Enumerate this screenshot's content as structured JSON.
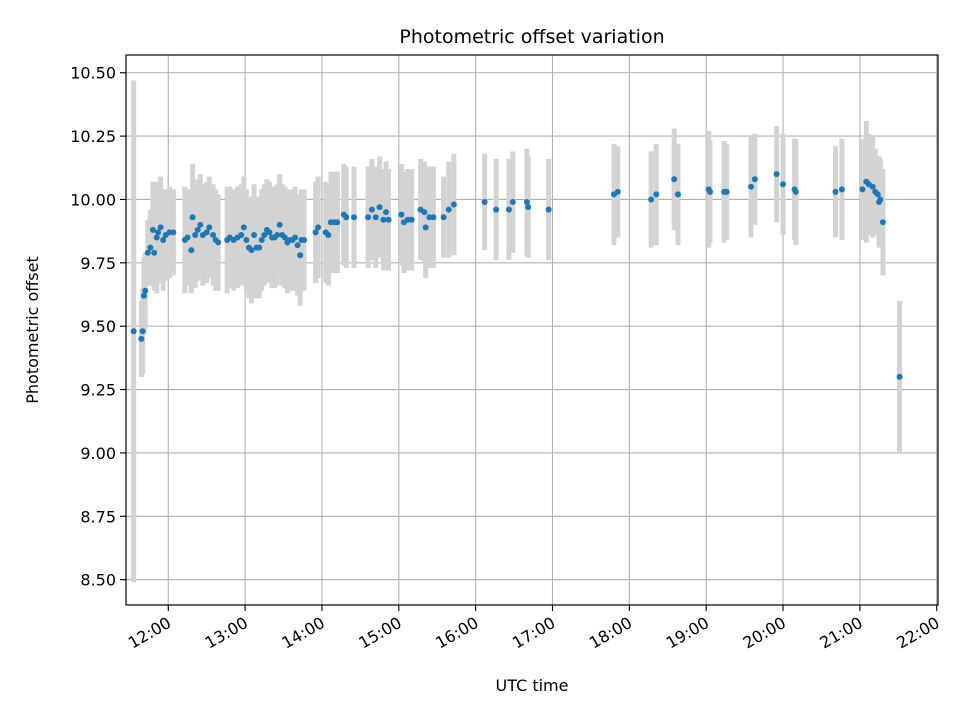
{
  "chart_data": {
    "type": "scatter",
    "title": "Photometric offset variation",
    "xlabel": "UTC time",
    "ylabel": "Photometric offset",
    "x_ticks": [
      "12:00",
      "13:00",
      "14:00",
      "15:00",
      "16:00",
      "17:00",
      "18:00",
      "19:00",
      "20:00",
      "21:00",
      "22:00"
    ],
    "y_ticks": [
      "8.50",
      "8.75",
      "9.00",
      "9.25",
      "9.50",
      "9.75",
      "10.00",
      "10.25",
      "10.50"
    ],
    "x_range": [
      "11:27",
      "22:01"
    ],
    "ylim": [
      8.4,
      10.57
    ],
    "grid": true,
    "colors": {
      "point": "#1f77b4",
      "errorbar": "#d3d3d3",
      "grid": "#b0b0b0"
    },
    "points": [
      {
        "x": "11:33",
        "y": 9.48,
        "err": 0.99
      },
      {
        "x": "11:39",
        "y": 9.45,
        "err": 0.15
      },
      {
        "x": "11:40",
        "y": 9.48,
        "err": 0.17
      },
      {
        "x": "11:41",
        "y": 9.62,
        "err": 0.15
      },
      {
        "x": "11:42",
        "y": 9.64,
        "err": 0.15
      },
      {
        "x": "11:44",
        "y": 9.79,
        "err": 0.13
      },
      {
        "x": "11:46",
        "y": 9.81,
        "err": 0.15
      },
      {
        "x": "11:48",
        "y": 9.88,
        "err": 0.19
      },
      {
        "x": "11:49",
        "y": 9.79,
        "err": 0.15
      },
      {
        "x": "11:51",
        "y": 9.85,
        "err": 0.22
      },
      {
        "x": "11:52",
        "y": 9.87,
        "err": 0.2
      },
      {
        "x": "11:54",
        "y": 9.89,
        "err": 0.2
      },
      {
        "x": "11:56",
        "y": 9.84,
        "err": 0.2
      },
      {
        "x": "11:58",
        "y": 9.86,
        "err": 0.18
      },
      {
        "x": "12:01",
        "y": 9.87,
        "err": 0.18
      },
      {
        "x": "12:04",
        "y": 9.87,
        "err": 0.17
      },
      {
        "x": "12:13",
        "y": 9.84,
        "err": 0.21
      },
      {
        "x": "12:15",
        "y": 9.85,
        "err": 0.19
      },
      {
        "x": "12:18",
        "y": 9.8,
        "err": 0.17
      },
      {
        "x": "12:19",
        "y": 9.93,
        "err": 0.21
      },
      {
        "x": "12:21",
        "y": 9.86,
        "err": 0.21
      },
      {
        "x": "12:23",
        "y": 9.88,
        "err": 0.2
      },
      {
        "x": "12:25",
        "y": 9.9,
        "err": 0.2
      },
      {
        "x": "12:27",
        "y": 9.86,
        "err": 0.2
      },
      {
        "x": "12:30",
        "y": 9.87,
        "err": 0.2
      },
      {
        "x": "12:32",
        "y": 9.89,
        "err": 0.2
      },
      {
        "x": "12:35",
        "y": 9.86,
        "err": 0.2
      },
      {
        "x": "12:37",
        "y": 9.84,
        "err": 0.2
      },
      {
        "x": "12:39",
        "y": 9.83,
        "err": 0.19
      },
      {
        "x": "12:46",
        "y": 9.84,
        "err": 0.21
      },
      {
        "x": "12:48",
        "y": 9.85,
        "err": 0.2
      },
      {
        "x": "12:51",
        "y": 9.84,
        "err": 0.2
      },
      {
        "x": "12:54",
        "y": 9.85,
        "err": 0.2
      },
      {
        "x": "12:57",
        "y": 9.86,
        "err": 0.2
      },
      {
        "x": "12:59",
        "y": 9.89,
        "err": 0.2
      },
      {
        "x": "13:01",
        "y": 9.84,
        "err": 0.2
      },
      {
        "x": "13:03",
        "y": 9.81,
        "err": 0.2
      },
      {
        "x": "13:05",
        "y": 9.8,
        "err": 0.21
      },
      {
        "x": "13:07",
        "y": 9.86,
        "err": 0.2
      },
      {
        "x": "13:09",
        "y": 9.81,
        "err": 0.2
      },
      {
        "x": "13:11",
        "y": 9.81,
        "err": 0.2
      },
      {
        "x": "13:13",
        "y": 9.84,
        "err": 0.2
      },
      {
        "x": "13:15",
        "y": 9.86,
        "err": 0.2
      },
      {
        "x": "13:17",
        "y": 9.88,
        "err": 0.2
      },
      {
        "x": "13:19",
        "y": 9.87,
        "err": 0.2
      },
      {
        "x": "13:21",
        "y": 9.85,
        "err": 0.2
      },
      {
        "x": "13:23",
        "y": 9.85,
        "err": 0.2
      },
      {
        "x": "13:25",
        "y": 9.86,
        "err": 0.2
      },
      {
        "x": "13:27",
        "y": 9.9,
        "err": 0.2
      },
      {
        "x": "13:29",
        "y": 9.86,
        "err": 0.2
      },
      {
        "x": "13:31",
        "y": 9.85,
        "err": 0.2
      },
      {
        "x": "13:33",
        "y": 9.83,
        "err": 0.2
      },
      {
        "x": "13:35",
        "y": 9.84,
        "err": 0.2
      },
      {
        "x": "13:37",
        "y": 9.84,
        "err": 0.2
      },
      {
        "x": "13:39",
        "y": 9.85,
        "err": 0.2
      },
      {
        "x": "13:41",
        "y": 9.82,
        "err": 0.2
      },
      {
        "x": "13:43",
        "y": 9.78,
        "err": 0.2
      },
      {
        "x": "13:44",
        "y": 9.84,
        "err": 0.2
      },
      {
        "x": "13:46",
        "y": 9.84,
        "err": 0.2
      },
      {
        "x": "13:55",
        "y": 9.87,
        "err": 0.2
      },
      {
        "x": "13:57",
        "y": 9.89,
        "err": 0.2
      },
      {
        "x": "14:03",
        "y": 9.87,
        "err": 0.2
      },
      {
        "x": "14:05",
        "y": 9.86,
        "err": 0.2
      },
      {
        "x": "14:07",
        "y": 9.91,
        "err": 0.2
      },
      {
        "x": "14:10",
        "y": 9.91,
        "err": 0.2
      },
      {
        "x": "14:12",
        "y": 9.91,
        "err": 0.2
      },
      {
        "x": "14:17",
        "y": 9.94,
        "err": 0.2
      },
      {
        "x": "14:19",
        "y": 9.93,
        "err": 0.2
      },
      {
        "x": "14:25",
        "y": 9.93,
        "err": 0.2
      },
      {
        "x": "14:36",
        "y": 9.93,
        "err": 0.2
      },
      {
        "x": "14:39",
        "y": 9.96,
        "err": 0.2
      },
      {
        "x": "14:42",
        "y": 9.93,
        "err": 0.2
      },
      {
        "x": "14:45",
        "y": 9.97,
        "err": 0.2
      },
      {
        "x": "14:48",
        "y": 9.92,
        "err": 0.2
      },
      {
        "x": "14:50",
        "y": 9.95,
        "err": 0.2
      },
      {
        "x": "14:52",
        "y": 9.92,
        "err": 0.2
      },
      {
        "x": "15:02",
        "y": 9.94,
        "err": 0.2
      },
      {
        "x": "15:04",
        "y": 9.91,
        "err": 0.2
      },
      {
        "x": "15:07",
        "y": 9.92,
        "err": 0.2
      },
      {
        "x": "15:10",
        "y": 9.92,
        "err": 0.2
      },
      {
        "x": "15:17",
        "y": 9.96,
        "err": 0.2
      },
      {
        "x": "15:20",
        "y": 9.95,
        "err": 0.2
      },
      {
        "x": "15:21",
        "y": 9.89,
        "err": 0.2
      },
      {
        "x": "15:24",
        "y": 9.93,
        "err": 0.2
      },
      {
        "x": "15:27",
        "y": 9.93,
        "err": 0.2
      },
      {
        "x": "15:35",
        "y": 9.93,
        "err": 0.16
      },
      {
        "x": "15:39",
        "y": 9.96,
        "err": 0.19
      },
      {
        "x": "15:43",
        "y": 9.98,
        "err": 0.2
      },
      {
        "x": "16:07",
        "y": 9.99,
        "err": 0.19
      },
      {
        "x": "16:16",
        "y": 9.96,
        "err": 0.2
      },
      {
        "x": "16:26",
        "y": 9.96,
        "err": 0.2
      },
      {
        "x": "16:29",
        "y": 9.99,
        "err": 0.2
      },
      {
        "x": "16:40",
        "y": 9.99,
        "err": 0.21
      },
      {
        "x": "16:41",
        "y": 9.97,
        "err": 0.2
      },
      {
        "x": "16:57",
        "y": 9.96,
        "err": 0.2
      },
      {
        "x": "17:48",
        "y": 10.02,
        "err": 0.2
      },
      {
        "x": "17:51",
        "y": 10.03,
        "err": 0.18
      },
      {
        "x": "18:17",
        "y": 10.0,
        "err": 0.19
      },
      {
        "x": "18:21",
        "y": 10.02,
        "err": 0.2
      },
      {
        "x": "18:35",
        "y": 10.08,
        "err": 0.2
      },
      {
        "x": "18:38",
        "y": 10.02,
        "err": 0.2
      },
      {
        "x": "19:02",
        "y": 10.04,
        "err": 0.23
      },
      {
        "x": "19:03",
        "y": 10.03,
        "err": 0.2
      },
      {
        "x": "19:14",
        "y": 10.03,
        "err": 0.2
      },
      {
        "x": "19:16",
        "y": 10.03,
        "err": 0.19
      },
      {
        "x": "19:35",
        "y": 10.05,
        "err": 0.2
      },
      {
        "x": "19:38",
        "y": 10.08,
        "err": 0.18
      },
      {
        "x": "19:55",
        "y": 10.1,
        "err": 0.19
      },
      {
        "x": "20:00",
        "y": 10.06,
        "err": 0.2
      },
      {
        "x": "20:09",
        "y": 10.04,
        "err": 0.2
      },
      {
        "x": "20:10",
        "y": 10.03,
        "err": 0.21
      },
      {
        "x": "20:41",
        "y": 10.03,
        "err": 0.18
      },
      {
        "x": "20:46",
        "y": 10.04,
        "err": 0.2
      },
      {
        "x": "21:02",
        "y": 10.04,
        "err": 0.2
      },
      {
        "x": "21:05",
        "y": 10.07,
        "err": 0.24
      },
      {
        "x": "21:07",
        "y": 10.06,
        "err": 0.2
      },
      {
        "x": "21:10",
        "y": 10.05,
        "err": 0.2
      },
      {
        "x": "21:12",
        "y": 10.03,
        "err": 0.17
      },
      {
        "x": "21:14",
        "y": 10.02,
        "err": 0.15
      },
      {
        "x": "21:15",
        "y": 9.99,
        "err": 0.18
      },
      {
        "x": "21:16",
        "y": 10.0,
        "err": 0.16
      },
      {
        "x": "21:18",
        "y": 9.91,
        "err": 0.21
      },
      {
        "x": "21:31",
        "y": 9.3,
        "err": 0.3
      }
    ]
  }
}
